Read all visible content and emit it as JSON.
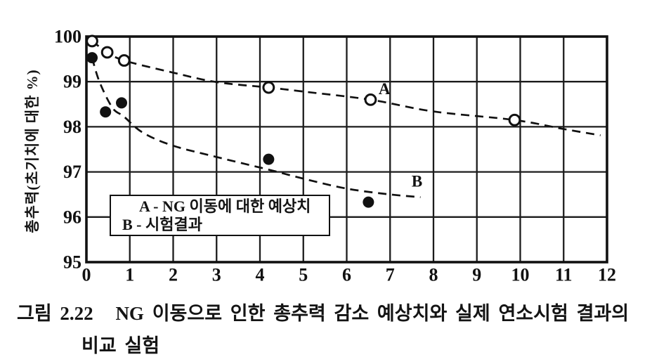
{
  "page": {
    "background": "#ffffff",
    "ink": "#111111"
  },
  "figure_caption": {
    "prefix": "그림 2.22",
    "line1": "NG 이동으로 인한 총추력 감소 예상치와 실제 연소시험 결과의",
    "line2": "비교 실험"
  },
  "chart_data": {
    "type": "scatter",
    "title": "",
    "xlabel": "",
    "ylabel": "총추력(초기치에 대한 %)",
    "xlim": [
      0,
      12
    ],
    "ylim": [
      95,
      100
    ],
    "x_ticks": [
      "0",
      "1",
      "2",
      "3",
      "4",
      "5",
      "6",
      "7",
      "8",
      "9",
      "10",
      "11",
      "12"
    ],
    "y_ticks": [
      "100",
      "99",
      "98",
      "97",
      "96",
      "95"
    ],
    "grid": true,
    "legend": {
      "position": "inside-bottom-left",
      "entries": [
        "A - NG 이동에 대한 예상치",
        "B - 시험결과"
      ]
    },
    "series": [
      {
        "name": "A",
        "description": "NG 이동에 대한 예상치 (predicted for NG travel)",
        "marker": "open-circle",
        "line_style": "dashed",
        "points": [
          [
            0.13,
            99.9
          ],
          [
            0.48,
            99.65
          ],
          [
            0.87,
            99.47
          ],
          [
            4.2,
            98.87
          ],
          [
            6.55,
            98.6
          ],
          [
            9.87,
            98.15
          ]
        ],
        "curve": [
          [
            0.13,
            99.9
          ],
          [
            0.5,
            99.64
          ],
          [
            0.9,
            99.46
          ],
          [
            2,
            99.2
          ],
          [
            3,
            98.99
          ],
          [
            4.2,
            98.87
          ],
          [
            5,
            98.78
          ],
          [
            6.55,
            98.6
          ],
          [
            8,
            98.34
          ],
          [
            9.87,
            98.15
          ],
          [
            11,
            97.95
          ],
          [
            11.85,
            97.81
          ]
        ],
        "label": "A",
        "label_xy": [
          6.87,
          98.84
        ]
      },
      {
        "name": "B",
        "description": "시험결과 (test results)",
        "marker": "filled-circle",
        "line_style": "dashed",
        "points": [
          [
            0.13,
            99.53
          ],
          [
            0.44,
            98.33
          ],
          [
            0.81,
            98.53
          ],
          [
            4.2,
            97.28
          ],
          [
            6.5,
            96.33
          ]
        ],
        "curve": [
          [
            0.13,
            99.53
          ],
          [
            0.3,
            99.0
          ],
          [
            0.6,
            98.42
          ],
          [
            0.86,
            98.23
          ],
          [
            1.3,
            97.87
          ],
          [
            2,
            97.58
          ],
          [
            3,
            97.33
          ],
          [
            4.2,
            97.05
          ],
          [
            5,
            96.85
          ],
          [
            6,
            96.63
          ],
          [
            7,
            96.5
          ],
          [
            7.7,
            96.44
          ]
        ],
        "label": "B",
        "label_xy": [
          7.62,
          96.79
        ]
      }
    ]
  }
}
